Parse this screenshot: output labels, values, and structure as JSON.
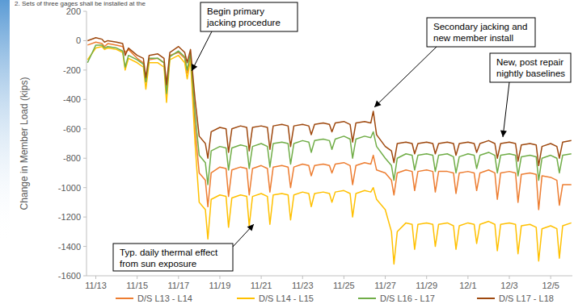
{
  "chart_data": {
    "type": "line",
    "subtitle": "2. Sets of three gages shall be installed at the",
    "y_label": "Change in Member Load (kips)",
    "legend": "bottom",
    "grid": false,
    "xlim": [
      12.55,
      36.05
    ],
    "xticks": [
      {
        "value": 13,
        "label": "11/13"
      },
      {
        "value": 15,
        "label": "11/15"
      },
      {
        "value": 17,
        "label": "11/17"
      },
      {
        "value": 19,
        "label": "11/19"
      },
      {
        "value": 21,
        "label": "11/21"
      },
      {
        "value": 23,
        "label": "11/23"
      },
      {
        "value": 25,
        "label": "11/25"
      },
      {
        "value": 27,
        "label": "11/27"
      },
      {
        "value": 29,
        "label": "11/29"
      },
      {
        "value": 31,
        "label": "12/1"
      },
      {
        "value": 33,
        "label": "12/3"
      },
      {
        "value": 35,
        "label": "12/5"
      }
    ],
    "ylim": [
      -1600,
      200
    ],
    "yticks": [
      200,
      0,
      -200,
      -400,
      -600,
      -800,
      -1000,
      -1200,
      -1400,
      -1600
    ],
    "annotations": [
      {
        "lines": [
          "Begin primary",
          "jacking procedure"
        ]
      },
      {
        "lines": [
          "Secondary jacking and",
          "new member install"
        ]
      },
      {
        "lines": [
          "New, post repair",
          "nightly baselines"
        ]
      },
      {
        "lines": [
          "Typ. daily thermal effect",
          "from sun exposure"
        ]
      }
    ],
    "x": [
      12.6,
      13,
      13.3,
      13.42,
      13.58,
      14,
      14.3,
      14.42,
      14.58,
      15,
      15.3,
      15.42,
      15.58,
      16,
      16.3,
      16.42,
      16.58,
      17,
      17.3,
      17.42,
      17.58,
      17.8,
      18,
      18.3,
      18.42,
      18.58,
      19,
      19.3,
      19.42,
      19.58,
      20,
      20.3,
      20.42,
      20.58,
      21,
      21.3,
      21.42,
      21.58,
      22,
      22.3,
      22.42,
      22.58,
      23,
      23.3,
      23.42,
      23.58,
      24,
      24.3,
      24.42,
      24.58,
      25,
      25.3,
      25.42,
      25.58,
      26,
      26.3,
      26.42,
      26.58,
      27,
      27.3,
      27.42,
      27.58,
      28,
      28.3,
      28.42,
      28.58,
      29,
      29.3,
      29.42,
      29.58,
      30,
      30.3,
      30.42,
      30.58,
      31,
      31.3,
      31.42,
      31.58,
      32,
      32.3,
      32.42,
      32.58,
      33,
      33.3,
      33.42,
      33.58,
      34,
      34.3,
      34.42,
      34.58,
      35,
      35.3,
      35.42,
      35.58,
      36
    ],
    "series": [
      {
        "name": "D/S L13 - L14",
        "color": "#ed7d31",
        "values": [
          -30,
          -10,
          -20,
          -40,
          -20,
          -30,
          -40,
          -80,
          -60,
          -120,
          -150,
          -270,
          -130,
          -120,
          -150,
          -330,
          -100,
          -80,
          -120,
          -220,
          -100,
          -600,
          -900,
          -950,
          -1130,
          -900,
          -860,
          -870,
          -1060,
          -880,
          -860,
          -870,
          -1050,
          -870,
          -850,
          -870,
          -1030,
          -860,
          -850,
          -860,
          -1000,
          -860,
          -840,
          -850,
          -920,
          -850,
          -840,
          -850,
          -900,
          -840,
          -830,
          -850,
          -980,
          -850,
          -830,
          -840,
          -780,
          -880,
          -900,
          -950,
          -1050,
          -900,
          -880,
          -890,
          -1020,
          -890,
          -880,
          -890,
          -1030,
          -890,
          -890,
          -900,
          -1040,
          -900,
          -890,
          -900,
          -1020,
          -900,
          -880,
          -900,
          -1080,
          -900,
          -890,
          -900,
          -1100,
          -910,
          -900,
          -910,
          -1150,
          -920,
          -930,
          -950,
          -1120,
          -980,
          -980
        ]
      },
      {
        "name": "D/S L14 - L15",
        "color": "#ffc000",
        "values": [
          -130,
          -50,
          -40,
          -60,
          -50,
          -60,
          -80,
          -200,
          -120,
          -150,
          -180,
          -330,
          -150,
          -150,
          -180,
          -420,
          -130,
          -100,
          -150,
          -260,
          -130,
          -700,
          -1100,
          -1150,
          -1350,
          -1080,
          -1050,
          -1060,
          -1270,
          -1070,
          -1050,
          -1060,
          -1260,
          -1060,
          -1040,
          -1060,
          -1250,
          -1050,
          -1040,
          -1050,
          -1220,
          -1050,
          -1030,
          -1040,
          -1130,
          -1040,
          -1030,
          -1040,
          -1100,
          -1030,
          -1020,
          -1040,
          -1200,
          -1040,
          -1020,
          -1030,
          -1000,
          -1080,
          -1150,
          -1300,
          -1520,
          -1300,
          -1240,
          -1250,
          -1420,
          -1250,
          -1240,
          -1250,
          -1400,
          -1250,
          -1240,
          -1260,
          -1420,
          -1260,
          -1240,
          -1250,
          -1380,
          -1250,
          -1230,
          -1250,
          -1430,
          -1250,
          -1240,
          -1250,
          -1450,
          -1260,
          -1250,
          -1270,
          -1500,
          -1280,
          -1260,
          -1280,
          -1480,
          -1260,
          -1240
        ]
      },
      {
        "name": "D/S L16 - L17",
        "color": "#70ad47",
        "values": [
          -150,
          -30,
          -30,
          -50,
          -40,
          -50,
          -70,
          -180,
          -100,
          -130,
          -160,
          -280,
          -120,
          -120,
          -150,
          -360,
          -110,
          -70,
          -110,
          -200,
          -90,
          -500,
          -780,
          -830,
          -980,
          -750,
          -720,
          -730,
          -880,
          -730,
          -710,
          -720,
          -870,
          -720,
          -700,
          -720,
          -860,
          -700,
          -690,
          -700,
          -840,
          -700,
          -680,
          -690,
          -760,
          -680,
          -670,
          -680,
          -740,
          -670,
          -650,
          -670,
          -800,
          -670,
          -650,
          -660,
          -620,
          -720,
          -800,
          -850,
          -950,
          -800,
          -770,
          -780,
          -880,
          -780,
          -770,
          -780,
          -890,
          -780,
          -770,
          -790,
          -900,
          -790,
          -770,
          -780,
          -870,
          -780,
          -760,
          -780,
          -900,
          -780,
          -770,
          -780,
          -920,
          -790,
          -780,
          -790,
          -950,
          -800,
          -780,
          -800,
          -900,
          -780,
          -770
        ]
      },
      {
        "name": "D/S L17 - L18",
        "color": "#9e480e",
        "values": [
          0,
          20,
          10,
          -10,
          0,
          -10,
          -20,
          -100,
          -50,
          -100,
          -120,
          -250,
          -100,
          -90,
          -120,
          -300,
          -80,
          -40,
          -80,
          -150,
          -60,
          -400,
          -650,
          -700,
          -800,
          -620,
          -590,
          -600,
          -760,
          -600,
          -580,
          -590,
          -750,
          -590,
          -580,
          -590,
          -740,
          -580,
          -570,
          -580,
          -720,
          -580,
          -570,
          -580,
          -640,
          -570,
          -560,
          -570,
          -620,
          -560,
          -550,
          -570,
          -690,
          -560,
          -550,
          -560,
          -480,
          -640,
          -720,
          -750,
          -830,
          -700,
          -690,
          -700,
          -770,
          -700,
          -690,
          -700,
          -770,
          -700,
          -690,
          -700,
          -780,
          -700,
          -690,
          -700,
          -760,
          -700,
          -680,
          -700,
          -800,
          -700,
          -690,
          -700,
          -820,
          -710,
          -700,
          -710,
          -850,
          -720,
          -700,
          -720,
          -800,
          -690,
          -680
        ]
      }
    ]
  }
}
